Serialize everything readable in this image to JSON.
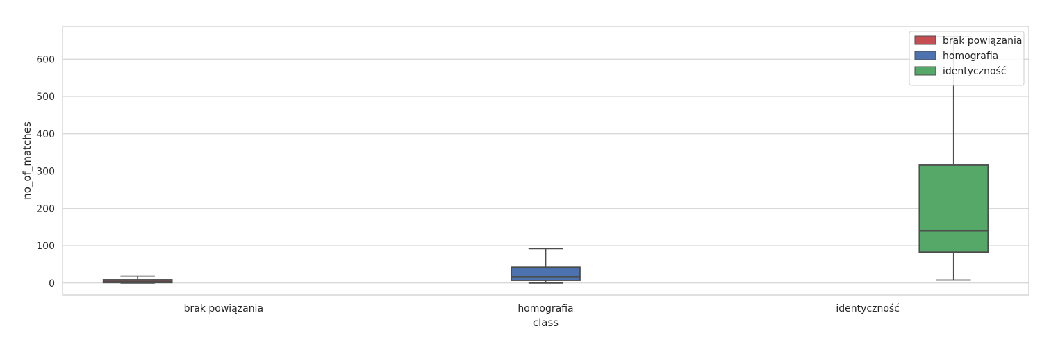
{
  "chart_data": {
    "type": "box",
    "xlabel": "class",
    "ylabel": "no_of_matches",
    "categories": [
      "brak powiązania",
      "homografia",
      "identyczność"
    ],
    "ylim": [
      -32,
      688
    ],
    "yticks": [
      0,
      100,
      200,
      300,
      400,
      500,
      600
    ],
    "grid": true,
    "legend": {
      "placement": "top-right",
      "entries": [
        "brak powiązania",
        "homografia",
        "identyczność"
      ]
    },
    "series": [
      {
        "name": "brak powiązania",
        "color": "#c44e52",
        "category": "brak powiązania",
        "min": 0,
        "q1": 1,
        "median": 5,
        "q3": 9,
        "max": 19
      },
      {
        "name": "homografia",
        "color": "#4c72b0",
        "category": "homografia",
        "min": 0,
        "q1": 7,
        "median": 17,
        "q3": 42,
        "max": 92
      },
      {
        "name": "identyczność",
        "color": "#55a868",
        "category": "identyczność",
        "min": 8,
        "q1": 83,
        "median": 140,
        "q3": 316,
        "max": 660
      }
    ]
  }
}
